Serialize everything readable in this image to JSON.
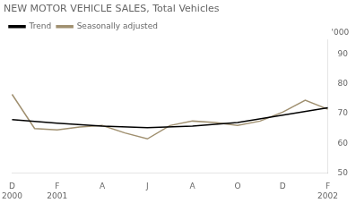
{
  "chart_data": {
    "type": "line",
    "title": "NEW MOTOR VEHICLE SALES, Total Vehicles",
    "ylabel": "'000",
    "categories": [
      "D\n2000",
      null,
      "F\n2001",
      null,
      "A",
      null,
      "J",
      null,
      "A",
      null,
      "O",
      null,
      "D",
      null,
      "F\n2002"
    ],
    "series": [
      {
        "name": "Trend",
        "color": "#000000",
        "values": [
          68.0,
          null,
          66.8,
          null,
          65.8,
          null,
          65.3,
          null,
          65.8,
          null,
          67.0,
          null,
          69.5,
          null,
          72.0
        ]
      },
      {
        "name": "Seasonally adjusted",
        "color": "#a09070",
        "values": [
          76.5,
          65.0,
          64.5,
          65.5,
          66.0,
          63.5,
          61.5,
          66.0,
          67.5,
          67.0,
          66.0,
          67.5,
          70.5,
          74.5,
          71.5
        ]
      }
    ],
    "ylim": [
      50,
      95
    ],
    "yticks": [
      50,
      60,
      70,
      80,
      90
    ],
    "grid": false,
    "legend": "upper left"
  }
}
